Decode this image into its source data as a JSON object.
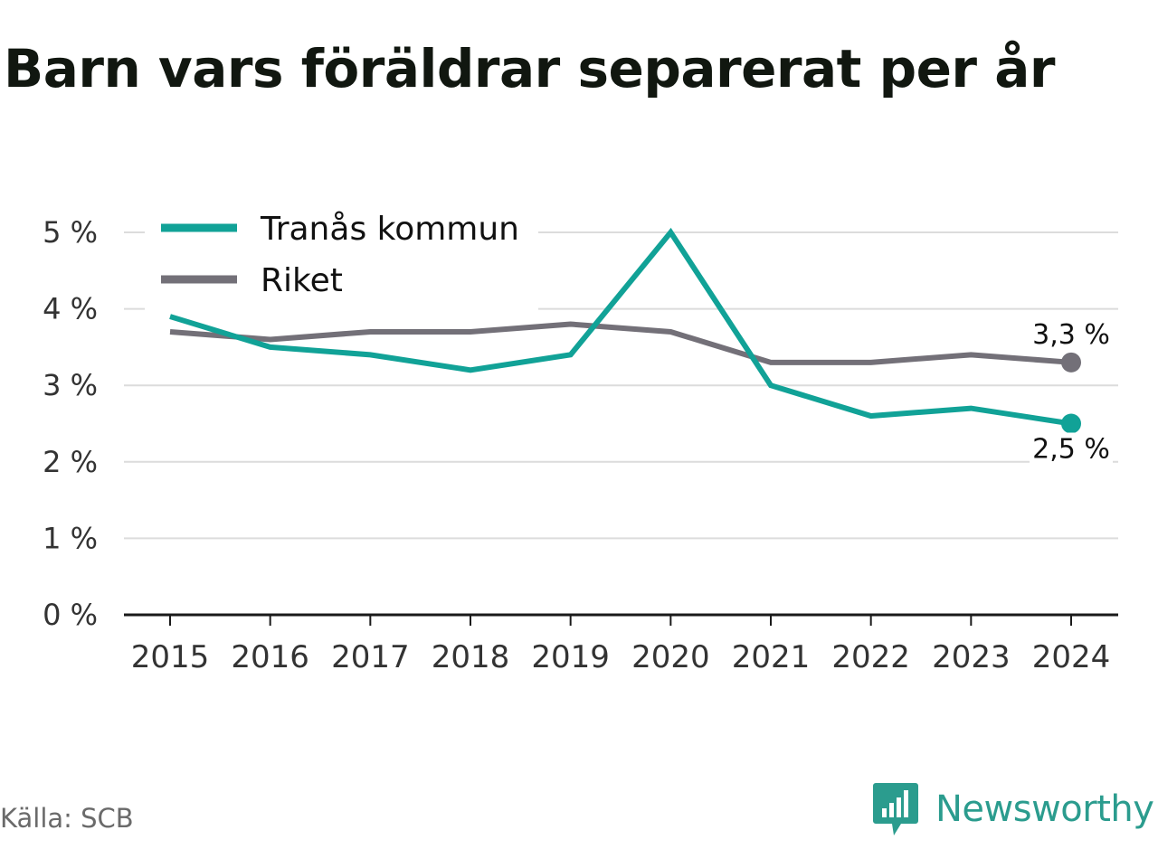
{
  "title": "Barn vars föräldrar separerat per år",
  "source": "Källa: SCB",
  "brand": "Newsworthy",
  "colors": {
    "tranas": "#11a297",
    "riket": "#737078",
    "brand": "#2b9c8e",
    "grid": "#dcdcdc",
    "axis": "#1a1a1a"
  },
  "chart_data": {
    "type": "line",
    "title": "Barn vars föräldrar separerat per år",
    "xlabel": "",
    "ylabel": "",
    "categories": [
      "2015",
      "2016",
      "2017",
      "2018",
      "2019",
      "2020",
      "2021",
      "2022",
      "2023",
      "2024"
    ],
    "ylim": [
      0,
      5
    ],
    "yticks": [
      0,
      1,
      2,
      3,
      4,
      5
    ],
    "ytick_labels": [
      "0 %",
      "1 %",
      "2 %",
      "3 %",
      "4 %",
      "5 %"
    ],
    "grid": true,
    "legend": "top-left",
    "series": [
      {
        "name": "Tranås kommun",
        "color": "#11a297",
        "values": [
          3.9,
          3.5,
          3.4,
          3.2,
          3.4,
          5.0,
          3.0,
          2.6,
          2.7,
          2.5
        ],
        "end_label": "2,5 %"
      },
      {
        "name": "Riket",
        "color": "#737078",
        "values": [
          3.7,
          3.6,
          3.7,
          3.7,
          3.8,
          3.7,
          3.3,
          3.3,
          3.4,
          3.3
        ],
        "end_label": "3,3 %"
      }
    ]
  }
}
